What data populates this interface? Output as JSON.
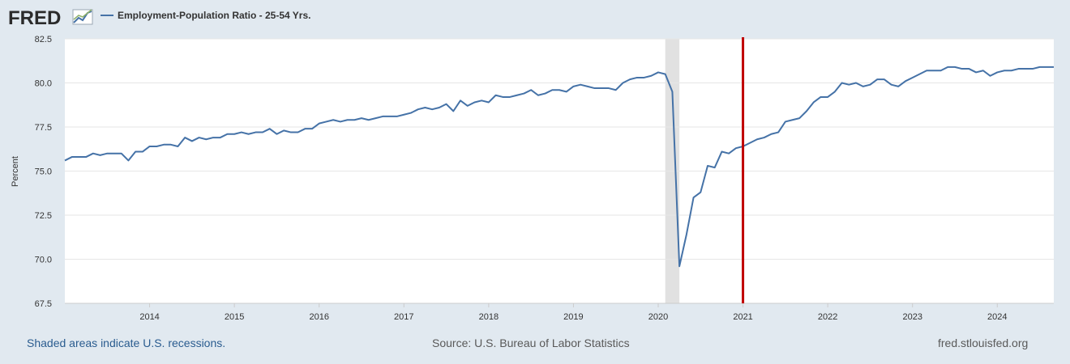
{
  "brand": {
    "logo_text": "FRED",
    "logo_icon": "line-chart-icon"
  },
  "legend": {
    "series_label": "Employment-Population Ratio - 25-54 Yrs."
  },
  "colors": {
    "series": "#4572a7",
    "marker": "#c00000",
    "recession": "#e1e1e1"
  },
  "footer": {
    "recession_note": "Shaded areas indicate U.S. recessions.",
    "source": "Source: U.S. Bureau of Labor Statistics",
    "site": "fred.stlouisfed.org"
  },
  "chart_data": {
    "type": "line",
    "ylabel": "Percent",
    "xlabel": "",
    "ylim": [
      67.5,
      82.5
    ],
    "yticks": [
      67.5,
      70.0,
      72.5,
      75.0,
      77.5,
      80.0,
      82.5
    ],
    "ytick_labels": [
      "67.5",
      "70.0",
      "72.5",
      "75.0",
      "77.5",
      "80.0",
      "82.5"
    ],
    "xlim": [
      "2013-01",
      "2024-09"
    ],
    "xticks": [
      "2014",
      "2015",
      "2016",
      "2017",
      "2018",
      "2019",
      "2020",
      "2021",
      "2022",
      "2023",
      "2024"
    ],
    "grid": true,
    "recession": {
      "start": "2020-02",
      "end": "2020-04"
    },
    "marker_line": {
      "x": "2021-01",
      "color": "#c00000"
    },
    "series": [
      {
        "name": "Employment-Population Ratio - 25-54 Yrs.",
        "start": "2013-01",
        "frequency": "monthly",
        "values": [
          75.6,
          75.8,
          75.8,
          75.8,
          76.0,
          75.9,
          76.0,
          76.0,
          76.0,
          75.6,
          76.1,
          76.1,
          76.4,
          76.4,
          76.5,
          76.5,
          76.4,
          76.9,
          76.7,
          76.9,
          76.8,
          76.9,
          76.9,
          77.1,
          77.1,
          77.2,
          77.1,
          77.2,
          77.2,
          77.4,
          77.1,
          77.3,
          77.2,
          77.2,
          77.4,
          77.4,
          77.7,
          77.8,
          77.9,
          77.8,
          77.9,
          77.9,
          78.0,
          77.9,
          78.0,
          78.1,
          78.1,
          78.1,
          78.2,
          78.3,
          78.5,
          78.6,
          78.5,
          78.6,
          78.8,
          78.4,
          79.0,
          78.7,
          78.9,
          79.0,
          78.9,
          79.3,
          79.2,
          79.2,
          79.3,
          79.4,
          79.6,
          79.3,
          79.4,
          79.6,
          79.6,
          79.5,
          79.8,
          79.9,
          79.8,
          79.7,
          79.7,
          79.7,
          79.6,
          80.0,
          80.2,
          80.3,
          80.3,
          80.4,
          80.6,
          80.5,
          79.5,
          69.6,
          71.4,
          73.5,
          73.8,
          75.3,
          75.2,
          76.1,
          76.0,
          76.3,
          76.4,
          76.6,
          76.8,
          76.9,
          77.1,
          77.2,
          77.8,
          77.9,
          78.0,
          78.4,
          78.9,
          79.2,
          79.2,
          79.5,
          80.0,
          79.9,
          80.0,
          79.8,
          79.9,
          80.2,
          80.2,
          79.9,
          79.8,
          80.1,
          80.3,
          80.5,
          80.7,
          80.7,
          80.7,
          80.9,
          80.9,
          80.8,
          80.8,
          80.6,
          80.7,
          80.4,
          80.6,
          80.7,
          80.7,
          80.8,
          80.8,
          80.8,
          80.9,
          80.9,
          80.9
        ]
      }
    ]
  }
}
